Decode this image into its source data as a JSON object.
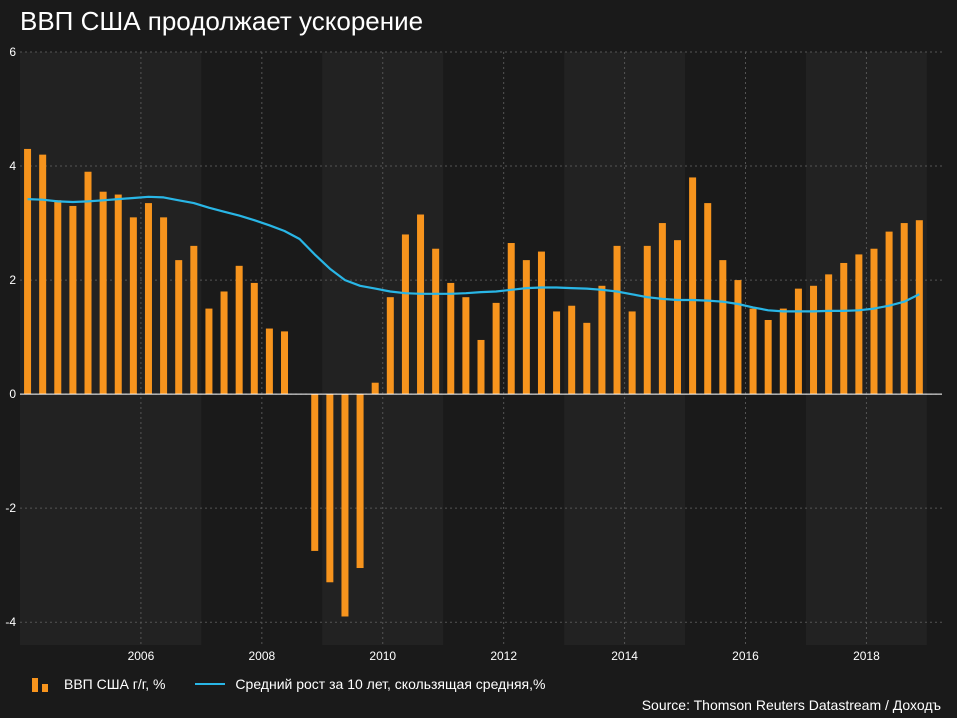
{
  "title": "ВВП США продолжает ускорение",
  "source": "Source: Thomson Reuters Datastream / Доходъ",
  "legend": {
    "bars_label": "ВВП США г/г, %",
    "line_label": "Средний рост за 10 лет, скользящая средняя,%"
  },
  "colors": {
    "bars": "#f7941d",
    "line": "#29b6e6",
    "background": "#1a1a1a",
    "band": "#222222"
  },
  "chart_data": {
    "type": "bar",
    "title": "ВВП США продолжает ускорение",
    "xlabel": "",
    "ylabel": "",
    "xlim": [
      2004.125,
      2019.125
    ],
    "ylim": [
      -4,
      6
    ],
    "yticks": [
      6,
      4,
      2,
      0,
      -2,
      -4
    ],
    "xticks": [
      2006,
      2008,
      2010,
      2012,
      2014,
      2016,
      2018
    ],
    "grid": true,
    "legend_position": "bottom-left",
    "x": [
      2004.125,
      2004.375,
      2004.625,
      2004.875,
      2005.125,
      2005.375,
      2005.625,
      2005.875,
      2006.125,
      2006.375,
      2006.625,
      2006.875,
      2007.125,
      2007.375,
      2007.625,
      2007.875,
      2008.125,
      2008.375,
      2008.625,
      2008.875,
      2009.125,
      2009.375,
      2009.625,
      2009.875,
      2010.125,
      2010.375,
      2010.625,
      2010.875,
      2011.125,
      2011.375,
      2011.625,
      2011.875,
      2012.125,
      2012.375,
      2012.625,
      2012.875,
      2013.125,
      2013.375,
      2013.625,
      2013.875,
      2014.125,
      2014.375,
      2014.625,
      2014.875,
      2015.125,
      2015.375,
      2015.625,
      2015.875,
      2016.125,
      2016.375,
      2016.625,
      2016.875,
      2017.125,
      2017.375,
      2017.625,
      2017.875,
      2018.125,
      2018.375,
      2018.625,
      2018.875
    ],
    "series": [
      {
        "name": "ВВП США г/г, %",
        "type": "bar",
        "values": [
          4.3,
          4.2,
          3.4,
          3.3,
          3.9,
          3.55,
          3.5,
          3.1,
          3.35,
          3.1,
          2.35,
          2.6,
          1.5,
          1.8,
          2.25,
          1.95,
          1.15,
          1.1,
          0.0,
          -2.75,
          -3.3,
          -3.9,
          -3.05,
          0.2,
          1.7,
          2.8,
          3.15,
          2.55,
          1.95,
          1.7,
          0.95,
          1.6,
          2.65,
          2.35,
          2.5,
          1.45,
          1.55,
          1.25,
          1.9,
          2.6,
          1.45,
          2.6,
          3.0,
          2.7,
          3.8,
          3.35,
          2.35,
          2.0,
          1.5,
          1.3,
          1.5,
          1.85,
          1.9,
          2.1,
          2.3,
          2.45,
          2.55,
          2.85,
          3.0,
          3.05
        ]
      },
      {
        "name": "Средний рост за 10 лет, скользящая средняя,%",
        "type": "line",
        "values": [
          3.42,
          3.41,
          3.38,
          3.37,
          3.38,
          3.4,
          3.42,
          3.44,
          3.46,
          3.45,
          3.4,
          3.35,
          3.27,
          3.2,
          3.13,
          3.05,
          2.96,
          2.86,
          2.72,
          2.45,
          2.2,
          2.0,
          1.9,
          1.85,
          1.8,
          1.77,
          1.76,
          1.76,
          1.76,
          1.77,
          1.79,
          1.8,
          1.83,
          1.86,
          1.87,
          1.87,
          1.86,
          1.85,
          1.83,
          1.8,
          1.75,
          1.7,
          1.67,
          1.65,
          1.65,
          1.64,
          1.62,
          1.58,
          1.52,
          1.47,
          1.45,
          1.45,
          1.45,
          1.46,
          1.46,
          1.47,
          1.5,
          1.55,
          1.62,
          1.75
        ]
      }
    ]
  }
}
